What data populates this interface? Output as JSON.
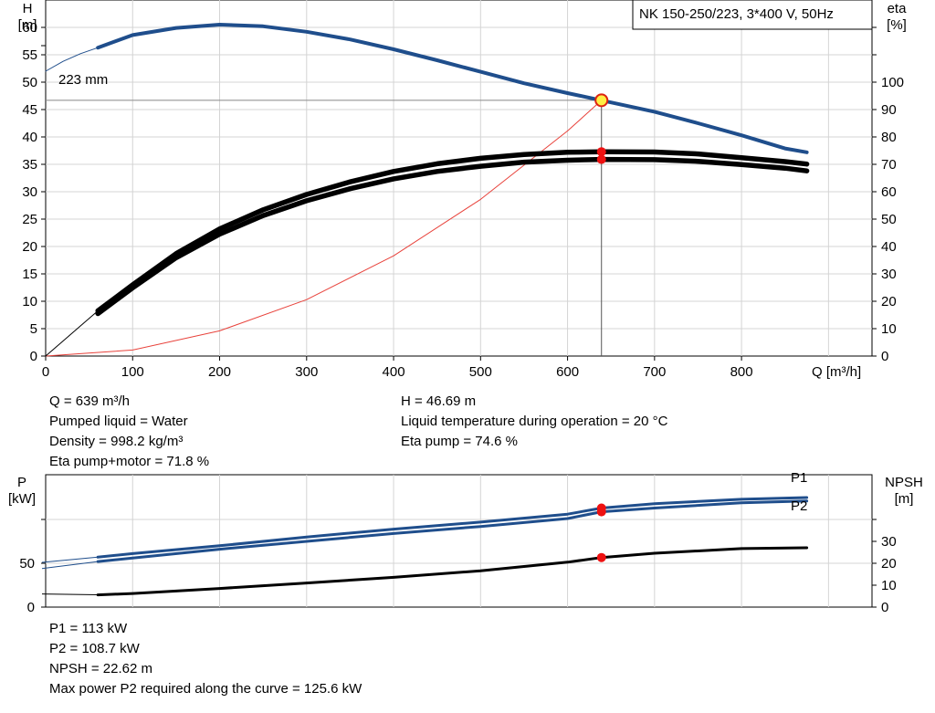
{
  "chart_data": [
    {
      "type": "line",
      "title": "NK 150-250/223, 3*400 V, 50Hz",
      "xlabel": "Q [m³/h]",
      "ylabel": "H\n[m]",
      "y2label": "eta\n[%]",
      "xlim": [
        0,
        950
      ],
      "ylim": [
        0,
        65
      ],
      "y2lim": [
        0,
        130
      ],
      "x_ticks": [
        "0",
        "100",
        "200",
        "300",
        "400",
        "500",
        "600",
        "700",
        "800"
      ],
      "y_ticks": [
        "0",
        "5",
        "10",
        "15",
        "20",
        "25",
        "30",
        "35",
        "40",
        "45",
        "50",
        "55",
        "60"
      ],
      "y2_ticks": [
        "0",
        "10",
        "20",
        "30",
        "40",
        "50",
        "60",
        "70",
        "80",
        "90",
        "100"
      ],
      "grid": true,
      "curve_annotation": "223 mm",
      "series": [
        {
          "key": "H",
          "axis": "left",
          "color": "#1f4e8c",
          "x": [
            60,
            100,
            150,
            200,
            250,
            300,
            350,
            400,
            450,
            500,
            550,
            600,
            639,
            700,
            750,
            800,
            850,
            875
          ],
          "y": [
            56.3,
            58.6,
            59.9,
            60.5,
            60.2,
            59.2,
            57.8,
            56.0,
            54.0,
            51.9,
            49.8,
            48.0,
            46.69,
            44.6,
            42.5,
            40.3,
            37.9,
            37.2
          ]
        },
        {
          "key": "H_ext",
          "axis": "left",
          "color": "#1f4e8c",
          "x": [
            0,
            20,
            40,
            60
          ],
          "y": [
            52.0,
            53.8,
            55.2,
            56.3
          ]
        },
        {
          "key": "eta_pump",
          "axis": "right",
          "color": "#000000",
          "x": [
            60,
            100,
            150,
            200,
            250,
            300,
            350,
            400,
            450,
            500,
            550,
            600,
            639,
            700,
            750,
            800,
            850,
            875
          ],
          "y": [
            16.5,
            26.0,
            37.4,
            46.4,
            53.4,
            59.0,
            63.6,
            67.4,
            70.2,
            72.2,
            73.6,
            74.4,
            74.6,
            74.5,
            73.8,
            72.4,
            71.0,
            70.1
          ]
        },
        {
          "key": "eta_pump_motor",
          "axis": "right",
          "color": "#000000",
          "x": [
            60,
            100,
            150,
            200,
            250,
            300,
            350,
            400,
            450,
            500,
            550,
            600,
            639,
            700,
            750,
            800,
            850,
            875
          ],
          "y": [
            15.5,
            24.9,
            35.9,
            44.5,
            51.3,
            56.7,
            61.1,
            64.7,
            67.4,
            69.3,
            70.8,
            71.5,
            71.8,
            71.7,
            71.1,
            69.9,
            68.6,
            67.6
          ]
        },
        {
          "key": "eta_ext",
          "axis": "right",
          "color": "#000000",
          "x": [
            0,
            20,
            40,
            60
          ],
          "y": [
            0,
            5.5,
            11.0,
            16.5
          ]
        },
        {
          "key": "system_curve",
          "axis": "left",
          "color": "#e8423b",
          "x": [
            0,
            100,
            200,
            300,
            400,
            500,
            600,
            639
          ],
          "y": [
            0,
            1.1,
            4.6,
            10.3,
            18.3,
            28.6,
            41.1,
            46.69
          ]
        }
      ],
      "operating_point": {
        "x": 639,
        "y": 46.69,
        "eta_pump": 74.6,
        "eta_pump_motor": 71.8
      }
    },
    {
      "type": "line",
      "ylabel": "P\n[kW]",
      "y2label": "NPSH\n[m]",
      "xlim": [
        0,
        950
      ],
      "y_ticks": [
        "0",
        "50"
      ],
      "y2_ticks": [
        "0",
        "10",
        "20",
        "30"
      ],
      "grid": true,
      "series": [
        {
          "key": "P1",
          "name": "P1",
          "axis": "left",
          "color": "#1f4e8c",
          "x": [
            60,
            100,
            200,
            300,
            400,
            500,
            600,
            639,
            700,
            800,
            875
          ],
          "y": [
            57.0,
            61.0,
            70.0,
            80.0,
            89.0,
            97.0,
            106.0,
            113.0,
            118.0,
            123.0,
            125.0
          ]
        },
        {
          "key": "P2",
          "name": "P2",
          "axis": "left",
          "color": "#1f4e8c",
          "x": [
            60,
            100,
            200,
            300,
            400,
            500,
            600,
            639,
            700,
            800,
            875
          ],
          "y": [
            52.0,
            56.0,
            66.0,
            75.0,
            84.0,
            92.0,
            101.0,
            108.7,
            113.0,
            119.0,
            121.0
          ]
        },
        {
          "key": "NPSH",
          "axis": "right",
          "color": "#000000",
          "x": [
            60,
            100,
            200,
            300,
            400,
            500,
            600,
            639,
            700,
            800,
            875
          ],
          "y": [
            5.6,
            6.2,
            8.5,
            11.0,
            13.6,
            16.6,
            20.5,
            22.62,
            24.6,
            26.7,
            27.1
          ]
        }
      ],
      "operating_point": {
        "x": 639,
        "P1": 113,
        "P2": 108.7,
        "NPSH": 22.62
      }
    }
  ],
  "info_top_left": [
    "Q = 639 m³/h",
    "Pumped liquid = Water",
    "Density = 998.2 kg/m³",
    "Eta pump+motor = 71.8 %"
  ],
  "info_top_right": [
    "H = 46.69 m",
    "Liquid temperature during operation = 20 °C",
    "Eta pump = 74.6 %"
  ],
  "info_bottom": [
    "P1 = 113 kW",
    "P2 = 108.7 kW",
    "NPSH = 22.62 m",
    "Max power P2 required along the curve = 125.6 kW"
  ]
}
